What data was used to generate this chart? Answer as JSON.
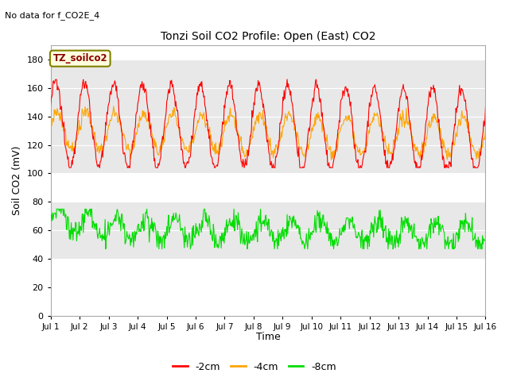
{
  "title": "Tonzi Soil CO2 Profile: Open (East) CO2",
  "subtitle": "No data for f_CO2E_4",
  "ylabel": "Soil CO2 (mV)",
  "xlabel": "Time",
  "ylim": [
    0,
    190
  ],
  "yticks": [
    0,
    20,
    40,
    60,
    80,
    100,
    120,
    140,
    160,
    180
  ],
  "xlim": [
    0,
    15
  ],
  "xtick_labels": [
    "Jul 1",
    "Jul 2",
    "Jul 3",
    "Jul 4",
    "Jul 5",
    "Jul 6",
    "Jul 7",
    "Jul 8",
    "Jul 9",
    "Jul 10",
    "Jul 11",
    "Jul 12",
    "Jul 13",
    "Jul 14",
    "Jul 15",
    "Jul 16"
  ],
  "legend_label": "TZ_soilco2",
  "fig_bg_color": "#ffffff",
  "plot_bg_color": "#ffffff",
  "band1_color": "#e8e8e8",
  "band1_ymin": 100,
  "band1_ymax": 180,
  "band2_color": "#e8e8e8",
  "band2_ymin": 40,
  "band2_ymax": 80,
  "line_colors": {
    "2cm": "#ff0000",
    "4cm": "#ffa500",
    "8cm": "#00dd00"
  },
  "legend_entries": [
    "-2cm",
    "-4cm",
    "-8cm"
  ],
  "legend_colors": [
    "#ff0000",
    "#ffa500",
    "#00dd00"
  ],
  "samples_per_day": 48,
  "days": 15
}
